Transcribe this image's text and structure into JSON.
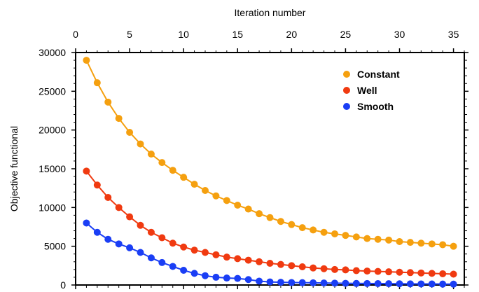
{
  "chart_data": {
    "type": "line",
    "xlabel": "Iteration number",
    "ylabel": "Objective functional",
    "xlim": [
      0,
      36
    ],
    "ylim": [
      0,
      30000
    ],
    "x_ticks": [
      "0",
      "5",
      "10",
      "15",
      "20",
      "25",
      "30",
      "35"
    ],
    "y_ticks": [
      "0",
      "5000",
      "10000",
      "15000",
      "20000",
      "25000",
      "30000"
    ],
    "x_axis_position": "top",
    "grid": false,
    "legend_position": "top-right",
    "x": [
      1,
      2,
      3,
      4,
      5,
      6,
      7,
      8,
      9,
      10,
      11,
      12,
      13,
      14,
      15,
      16,
      17,
      18,
      19,
      20,
      21,
      22,
      23,
      24,
      25,
      26,
      27,
      28,
      29,
      30,
      31,
      32,
      33,
      34,
      35
    ],
    "series": [
      {
        "name": "Constant",
        "color": "#f5a00f",
        "values": [
          29000,
          26100,
          23600,
          21500,
          19700,
          18200,
          16900,
          15800,
          14800,
          13900,
          13000,
          12200,
          11500,
          10900,
          10300,
          9800,
          9200,
          8700,
          8200,
          7800,
          7400,
          7100,
          6800,
          6600,
          6400,
          6200,
          6000,
          5900,
          5800,
          5600,
          5500,
          5400,
          5300,
          5200,
          5000
        ]
      },
      {
        "name": "Well",
        "color": "#f03a10",
        "values": [
          14700,
          12900,
          11300,
          10000,
          8800,
          7700,
          6800,
          6100,
          5400,
          4900,
          4500,
          4200,
          3900,
          3600,
          3400,
          3200,
          3000,
          2800,
          2650,
          2500,
          2350,
          2200,
          2100,
          2000,
          1950,
          1850,
          1800,
          1750,
          1700,
          1650,
          1600,
          1550,
          1500,
          1450,
          1400
        ]
      },
      {
        "name": "Smooth",
        "color": "#1a3ef5",
        "values": [
          8000,
          6800,
          5900,
          5300,
          4800,
          4200,
          3500,
          2900,
          2400,
          1900,
          1500,
          1200,
          1000,
          900,
          850,
          700,
          500,
          400,
          350,
          320,
          300,
          280,
          260,
          240,
          220,
          200,
          190,
          180,
          170,
          160,
          150,
          140,
          130,
          120,
          110
        ]
      }
    ]
  }
}
